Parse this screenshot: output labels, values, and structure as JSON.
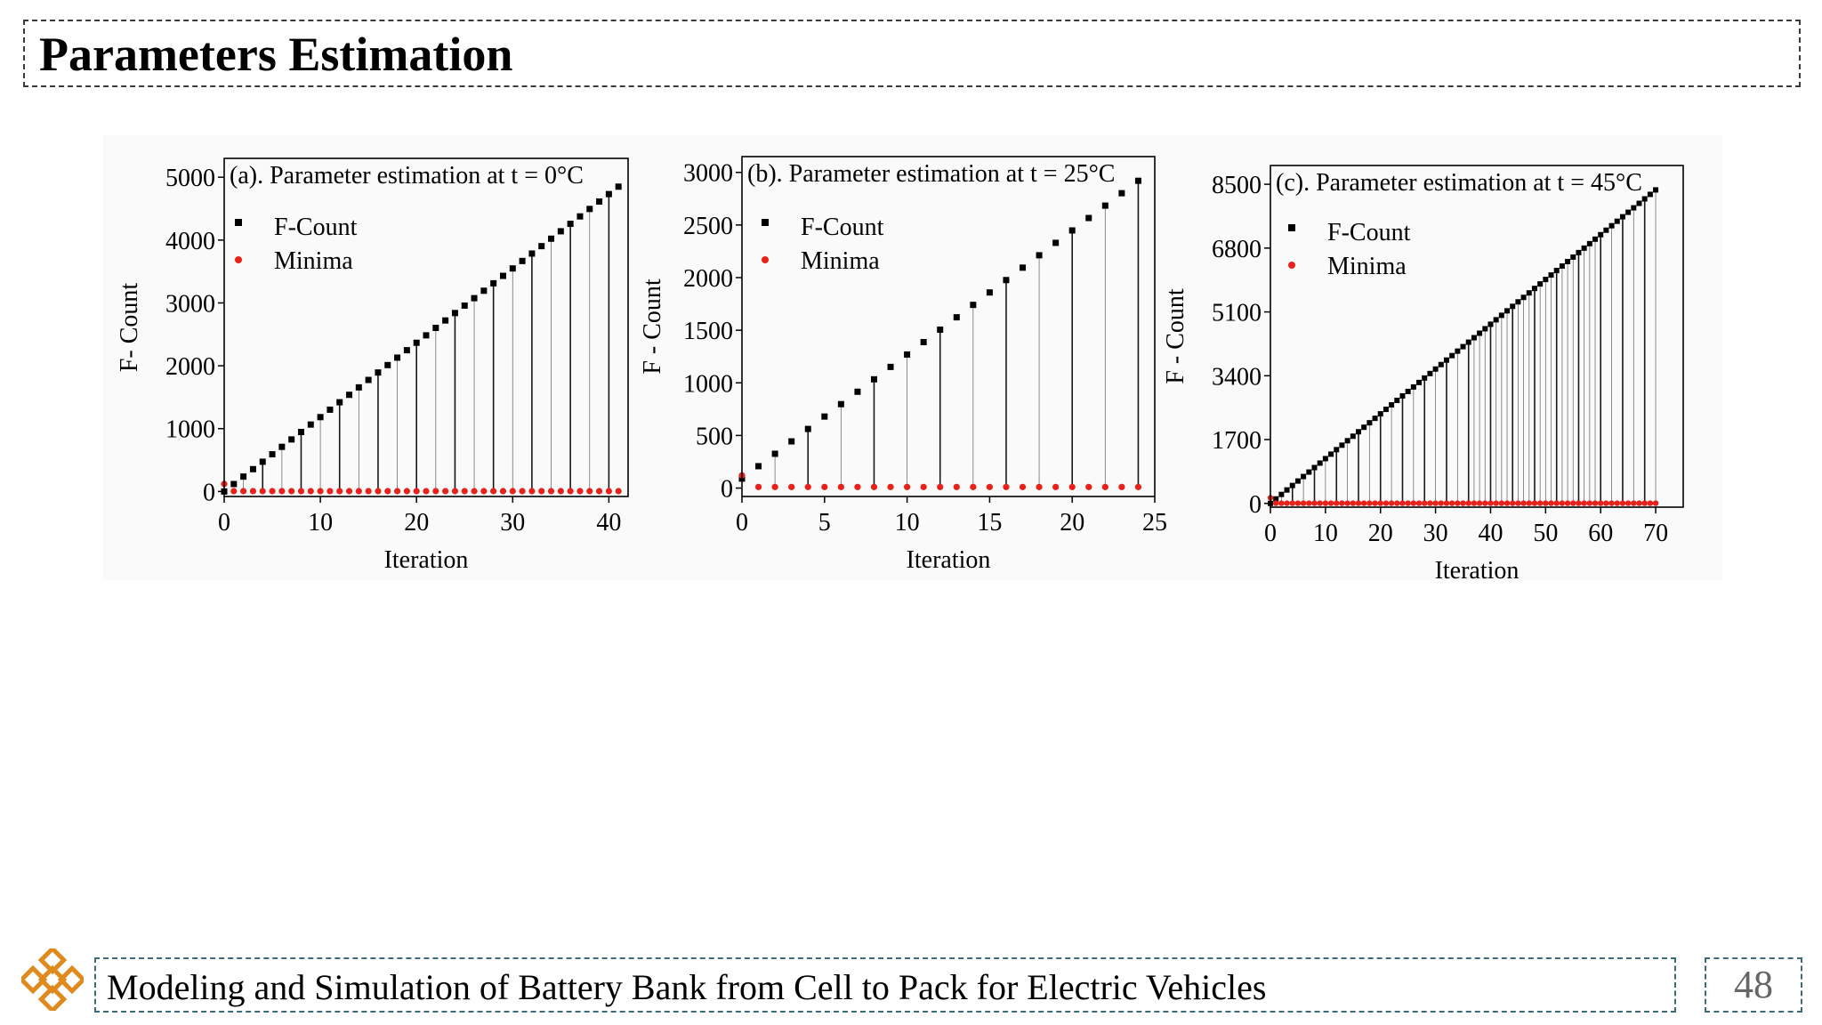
{
  "header": {
    "title": "Parameters Estimation"
  },
  "footer": {
    "text": "Modeling and Simulation of Battery Bank from Cell to Pack for Electric Vehicles",
    "page": "48"
  },
  "colors": {
    "fcount": "#000000",
    "minima": "#e8221b",
    "dashed_border": "#3d6b7a",
    "logo": "#e08a1e"
  },
  "chart_data": [
    {
      "type": "scatter",
      "title": "(a). Parameter estimation at t = 0°C",
      "xlabel": "Iteration",
      "ylabel": "F- Count",
      "xlim": [
        0,
        42
      ],
      "ylim": [
        -80,
        5300
      ],
      "xticks": [
        0,
        10,
        20,
        30,
        40
      ],
      "yticks": [
        0,
        1000,
        2000,
        3000,
        4000,
        5000
      ],
      "legend": "top-left",
      "series": [
        {
          "name": "F-Count",
          "x_start": 0,
          "x_end": 41,
          "y_start": 0,
          "y_end": 4850
        },
        {
          "name": "Minima",
          "x_start": 0,
          "x_end": 41,
          "first_value": 120,
          "value": 5
        }
      ]
    },
    {
      "type": "scatter",
      "title": "(b). Parameter estimation at t = 25°C",
      "xlabel": "Iteration",
      "ylabel": "F - Count",
      "xlim": [
        0,
        25
      ],
      "ylim": [
        -80,
        3150
      ],
      "xticks": [
        0,
        5,
        10,
        15,
        20,
        25
      ],
      "yticks": [
        0,
        500,
        1000,
        1500,
        2000,
        2500,
        3000
      ],
      "legend": "top-left",
      "series": [
        {
          "name": "F-Count",
          "x_start": 0,
          "x_end": 24,
          "y_start": 90,
          "y_end": 2920
        },
        {
          "name": "Minima",
          "x_start": 0,
          "x_end": 24,
          "first_value": 120,
          "value": 10
        }
      ]
    },
    {
      "type": "scatter",
      "title": "(c). Parameter estimation at t = 45°C",
      "xlabel": "Iteration",
      "ylabel": "F - Count",
      "xlim": [
        0,
        75
      ],
      "ylim": [
        -100,
        9000
      ],
      "xticks": [
        0,
        10,
        20,
        30,
        40,
        50,
        60,
        70
      ],
      "yticks": [
        0,
        1700,
        3400,
        5100,
        6800,
        8500
      ],
      "legend": "top-left",
      "series": [
        {
          "name": "F-Count",
          "x_start": 0,
          "x_end": 70,
          "y_start": 0,
          "y_end": 8350
        },
        {
          "name": "Minima",
          "x_start": 0,
          "x_end": 70,
          "first_value": 150,
          "value": 5
        }
      ]
    }
  ]
}
